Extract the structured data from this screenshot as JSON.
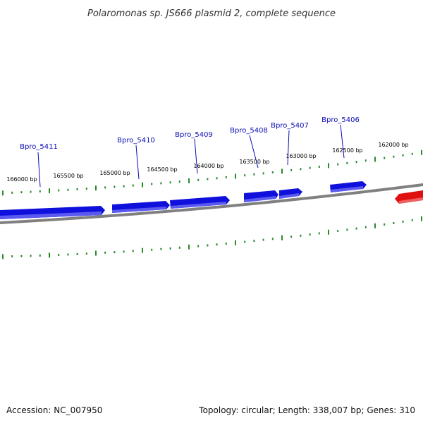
{
  "header": {
    "title": "Polaromonas sp. JS666 plasmid 2, complete sequence"
  },
  "footer": {
    "accession": "Accession: NC_007950",
    "summary": "Topology: circular; Length: 338,007 bp; Genes: 310"
  },
  "colors": {
    "forward_gene": "#1010dd",
    "reverse_gene": "#e01010",
    "backbone": "#808080",
    "ticks": "#2a8a2a",
    "gene_label": "#0b0bb8"
  },
  "bp_labels": [
    "166000 bp",
    "165500 bp",
    "165000 bp",
    "164500 bp",
    "164000 bp",
    "163500 bp",
    "163000 bp",
    "162500 bp",
    "162000 bp"
  ],
  "genes": [
    {
      "label": "Bpro_5411",
      "strand": "forward"
    },
    {
      "label": "Bpro_5410",
      "strand": "forward"
    },
    {
      "label": "Bpro_5409",
      "strand": "forward"
    },
    {
      "label": "Bpro_5408",
      "strand": "forward"
    },
    {
      "label": "Bpro_5407",
      "strand": "forward"
    },
    {
      "label": "Bpro_5406",
      "strand": "forward"
    },
    {
      "label": "",
      "strand": "reverse"
    }
  ]
}
